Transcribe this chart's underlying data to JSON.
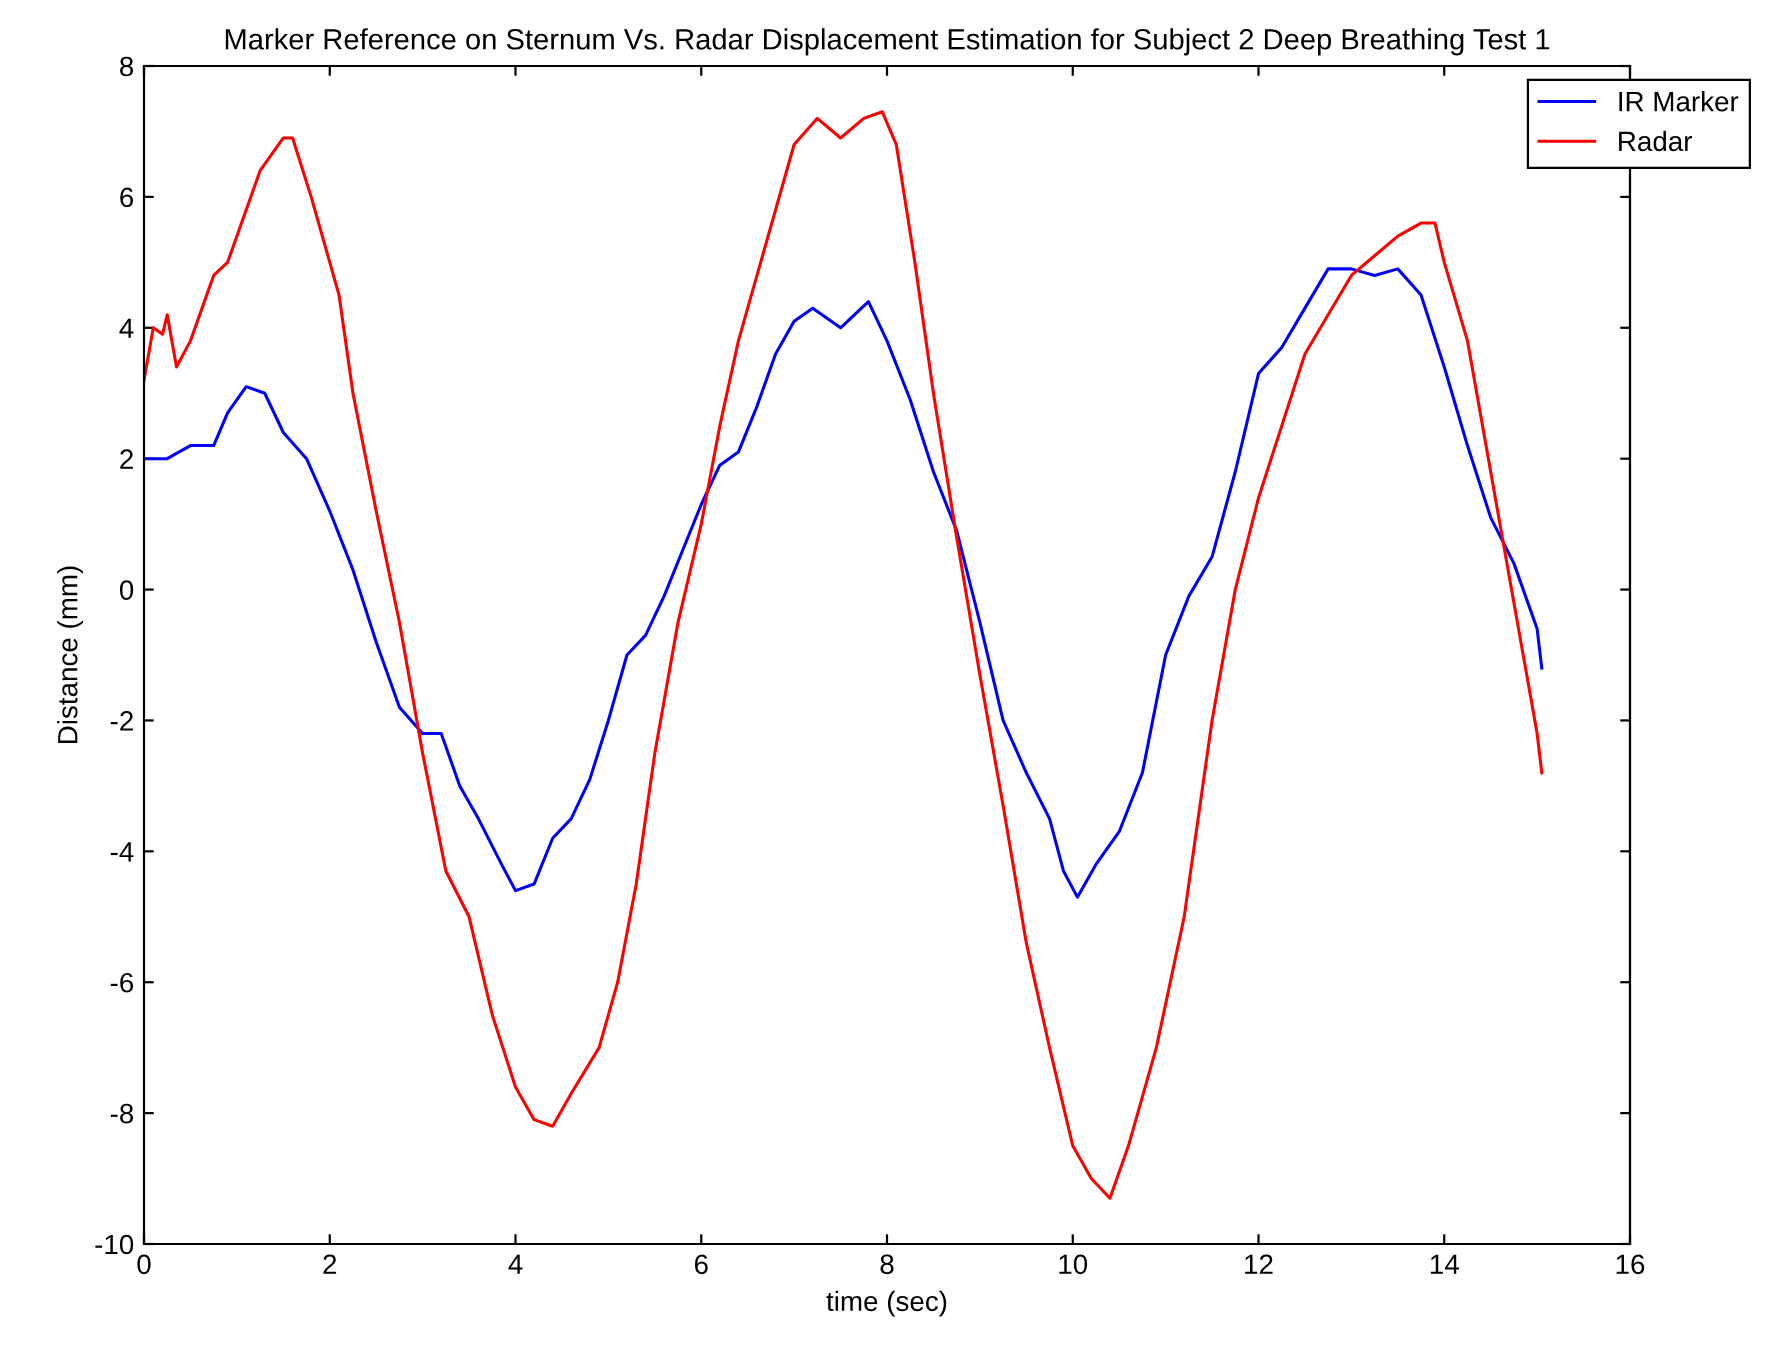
{
  "chart_data": {
    "type": "line",
    "title": "Marker Reference on Sternum Vs. Radar Displacement Estimation for Subject 2 Deep Breathing Test 1",
    "xlabel": "time (sec)",
    "ylabel": "Distance (mm)",
    "xlim": [
      0,
      16
    ],
    "ylim": [
      -10,
      8
    ],
    "xticks": [
      0,
      2,
      4,
      6,
      8,
      10,
      12,
      14,
      16
    ],
    "yticks": [
      -10,
      -8,
      -6,
      -4,
      -2,
      0,
      2,
      4,
      6,
      8
    ],
    "grid": false,
    "legend": "top right",
    "line_style": "solid",
    "marker": "none",
    "series": [
      {
        "name": "IR Marker",
        "color": "#0000ff",
        "x": [
          0,
          0.25,
          0.5,
          0.75,
          0.9,
          1.1,
          1.3,
          1.5,
          1.75,
          2.0,
          2.25,
          2.5,
          2.75,
          3.0,
          3.2,
          3.4,
          3.6,
          3.85,
          4.0,
          4.2,
          4.4,
          4.6,
          4.8,
          5.0,
          5.2,
          5.4,
          5.6,
          5.8,
          6.0,
          6.2,
          6.4,
          6.6,
          6.8,
          7.0,
          7.2,
          7.5,
          7.8,
          8.0,
          8.25,
          8.5,
          8.75,
          9.0,
          9.25,
          9.5,
          9.75,
          9.9,
          10.05,
          10.25,
          10.5,
          10.75,
          11.0,
          11.25,
          11.5,
          11.75,
          12.0,
          12.25,
          12.5,
          12.75,
          13.0,
          13.25,
          13.5,
          13.75,
          14.0,
          14.25,
          14.5,
          14.75,
          15.0,
          15.05
        ],
        "values": [
          2.0,
          2.0,
          2.2,
          2.2,
          2.7,
          3.1,
          3.0,
          2.4,
          2.0,
          1.2,
          0.3,
          -0.8,
          -1.8,
          -2.2,
          -2.2,
          -3.0,
          -3.5,
          -4.2,
          -4.6,
          -4.5,
          -3.8,
          -3.5,
          -2.9,
          -2.0,
          -1.0,
          -0.7,
          -0.1,
          0.6,
          1.3,
          1.9,
          2.1,
          2.8,
          3.6,
          4.1,
          4.3,
          4.0,
          4.4,
          3.8,
          2.9,
          1.8,
          0.9,
          -0.5,
          -2.0,
          -2.8,
          -3.5,
          -4.3,
          -4.7,
          -4.2,
          -3.7,
          -2.8,
          -1.0,
          -0.1,
          0.5,
          1.8,
          3.3,
          3.7,
          4.3,
          4.9,
          4.9,
          4.8,
          4.9,
          4.5,
          3.4,
          2.2,
          1.1,
          0.4,
          -0.6,
          -1.2
        ]
      },
      {
        "name": "Radar",
        "color": "#ff0000",
        "x": [
          0,
          0.1,
          0.2,
          0.25,
          0.35,
          0.5,
          0.75,
          0.9,
          1.1,
          1.25,
          1.5,
          1.6,
          1.8,
          2.0,
          2.1,
          2.25,
          2.5,
          2.75,
          3.0,
          3.25,
          3.5,
          3.75,
          4.0,
          4.2,
          4.4,
          4.6,
          4.9,
          5.1,
          5.3,
          5.5,
          5.75,
          6.0,
          6.2,
          6.4,
          6.6,
          6.8,
          7.0,
          7.25,
          7.5,
          7.75,
          7.95,
          8.1,
          8.3,
          8.5,
          8.75,
          9.0,
          9.25,
          9.5,
          9.75,
          10.0,
          10.2,
          10.4,
          10.6,
          10.9,
          11.2,
          11.5,
          11.75,
          12.0,
          12.25,
          12.5,
          12.75,
          13.0,
          13.25,
          13.5,
          13.75,
          13.9,
          14.0,
          14.25,
          14.5,
          14.75,
          15.0,
          15.05
        ],
        "values": [
          3.2,
          4.0,
          3.9,
          4.2,
          3.4,
          3.8,
          4.8,
          5.0,
          5.8,
          6.4,
          6.9,
          6.9,
          6.0,
          5.0,
          4.5,
          3.0,
          1.2,
          -0.5,
          -2.5,
          -4.3,
          -5.0,
          -6.5,
          -7.6,
          -8.1,
          -8.2,
          -7.7,
          -7.0,
          -6.0,
          -4.5,
          -2.5,
          -0.5,
          1.0,
          2.5,
          3.8,
          4.8,
          5.8,
          6.8,
          7.2,
          6.9,
          7.2,
          7.3,
          6.8,
          5.0,
          3.0,
          0.8,
          -1.3,
          -3.3,
          -5.4,
          -7.0,
          -8.5,
          -9.0,
          -9.3,
          -8.5,
          -7.0,
          -5.0,
          -2.0,
          0.0,
          1.4,
          2.5,
          3.6,
          4.2,
          4.8,
          5.1,
          5.4,
          5.6,
          5.6,
          5.0,
          3.8,
          1.8,
          -0.2,
          -2.2,
          -2.8
        ]
      }
    ]
  }
}
